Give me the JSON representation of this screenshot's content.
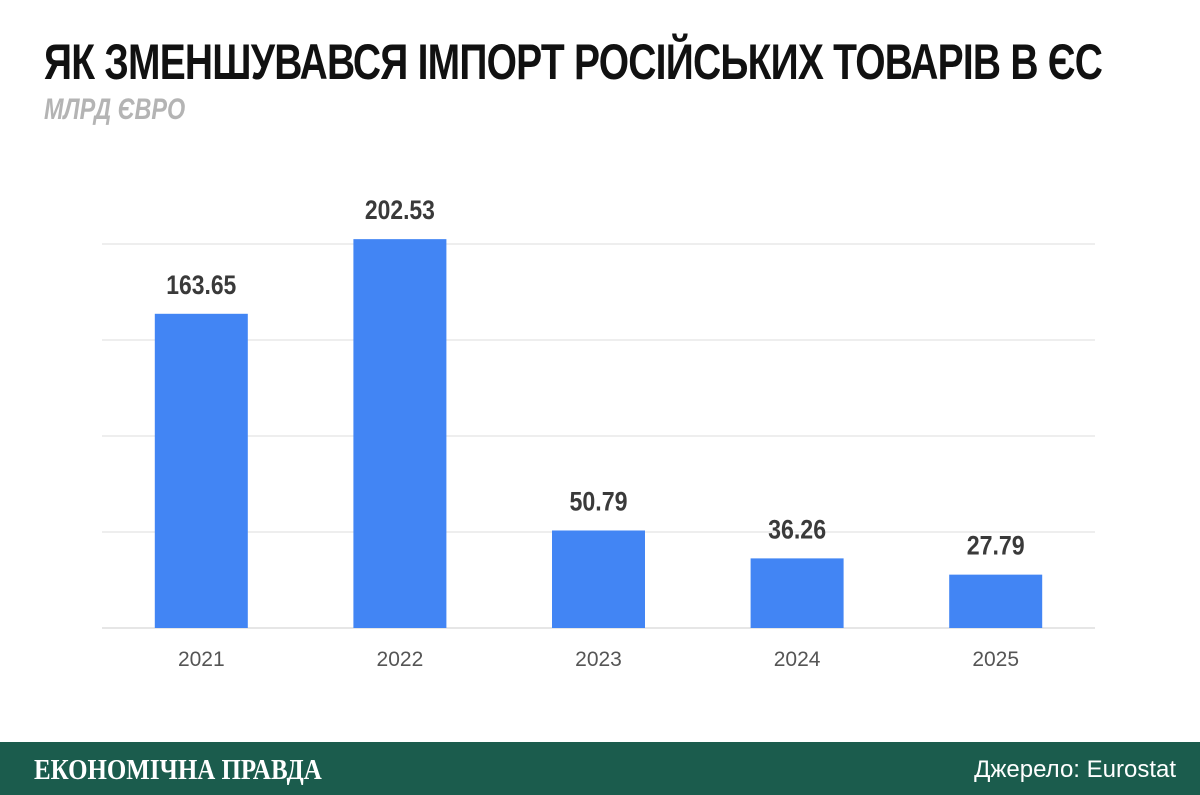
{
  "title": "ЯК ЗМЕНШУВАВСЯ ІМПОРТ РОСІЙСЬКИХ ТОВАРІВ В ЄС",
  "subtitle": "МЛРД ЄВРО",
  "footer": {
    "brand": "ЕКОНОМІЧНА ПРАВДА",
    "source": "Джерело: Eurostat",
    "background": "#1b5c4d"
  },
  "chart_data": {
    "type": "bar",
    "title": "ЯК ЗМЕНШУВАВСЯ ІМПОРТ РОСІЙСЬКИХ ТОВАРІВ В ЄС",
    "subtitle": "МЛРД ЄВРО",
    "categories": [
      "2021",
      "2022",
      "2023",
      "2024",
      "2025"
    ],
    "values": [
      163.65,
      202.53,
      50.79,
      36.26,
      27.79
    ],
    "value_labels": [
      "163.65",
      "202.53",
      "50.79",
      "36.26",
      "27.79"
    ],
    "ylim": [
      0,
      200
    ],
    "grid": true,
    "bar_color": "#4285f4",
    "grid_color": "#dddddd"
  }
}
